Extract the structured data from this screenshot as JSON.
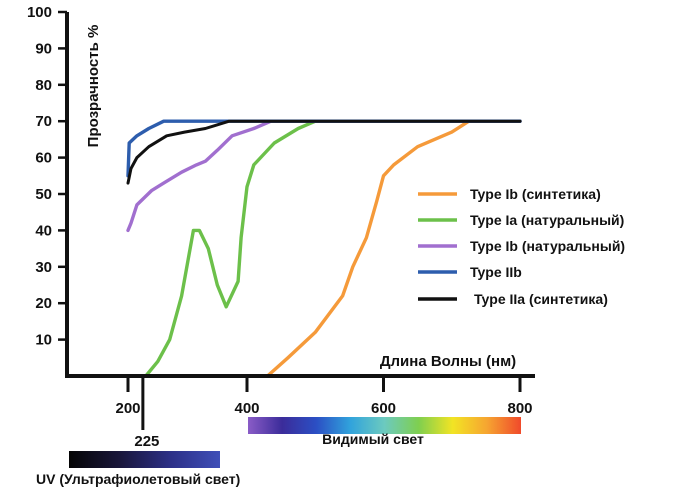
{
  "chart_data": {
    "type": "line",
    "ylabel": "Прозрачность %",
    "xlabel": "Длина Волны (нм)",
    "x_ticks": [
      200,
      400,
      600,
      800
    ],
    "extra_x_tick": 225,
    "y_ticks": [
      10,
      20,
      30,
      40,
      50,
      60,
      70,
      80,
      90,
      100
    ],
    "ylim": [
      0,
      100
    ],
    "xlim": [
      120,
      800
    ],
    "grid": false,
    "legend_position": "right",
    "series": [
      {
        "name": "Type Ib (синтетика)",
        "color": "#f59a3a",
        "points": [
          [
            430,
            0
          ],
          [
            460,
            5
          ],
          [
            500,
            12
          ],
          [
            540,
            22
          ],
          [
            555,
            30
          ],
          [
            575,
            38
          ],
          [
            590,
            48
          ],
          [
            600,
            55
          ],
          [
            615,
            58
          ],
          [
            650,
            63
          ],
          [
            700,
            67
          ],
          [
            725,
            70
          ],
          [
            800,
            70
          ]
        ]
      },
      {
        "name": "Type Ia (натуральный)",
        "color": "#6cc04a",
        "points": [
          [
            230,
            0
          ],
          [
            250,
            4
          ],
          [
            270,
            10
          ],
          [
            290,
            22
          ],
          [
            310,
            40
          ],
          [
            320,
            40
          ],
          [
            335,
            35
          ],
          [
            350,
            25
          ],
          [
            365,
            19
          ],
          [
            385,
            26
          ],
          [
            390,
            38
          ],
          [
            400,
            52
          ],
          [
            410,
            58
          ],
          [
            440,
            64
          ],
          [
            475,
            68
          ],
          [
            500,
            70
          ],
          [
            800,
            70
          ]
        ]
      },
      {
        "name": "Type Ib (натуральный)",
        "color": "#a16fcf",
        "points": [
          [
            200,
            40
          ],
          [
            205,
            42
          ],
          [
            215,
            47
          ],
          [
            240,
            51
          ],
          [
            260,
            53
          ],
          [
            290,
            56
          ],
          [
            315,
            58
          ],
          [
            330,
            59
          ],
          [
            350,
            62
          ],
          [
            375,
            66
          ],
          [
            410,
            68
          ],
          [
            435,
            70
          ],
          [
            800,
            70
          ]
        ]
      },
      {
        "name": "Type IIb",
        "color": "#2d5dad",
        "points": [
          [
            200,
            55
          ],
          [
            202,
            64
          ],
          [
            215,
            66
          ],
          [
            235,
            68
          ],
          [
            260,
            70
          ],
          [
            800,
            70
          ]
        ]
      },
      {
        "name": "Type IIa (синтетика)",
        "color": "#111111",
        "points": [
          [
            200,
            53
          ],
          [
            205,
            57
          ],
          [
            215,
            60
          ],
          [
            235,
            63
          ],
          [
            265,
            66
          ],
          [
            295,
            67
          ],
          [
            330,
            68
          ],
          [
            370,
            70
          ],
          [
            800,
            70
          ]
        ]
      }
    ],
    "bands": [
      {
        "label": "Видимый свет",
        "range": [
          400,
          800
        ],
        "colors": [
          "#8a5cc7",
          "#3b2c9a",
          "#2b4fc4",
          "#31a3dc",
          "#6ccabf",
          "#7fcf4f",
          "#f2e424",
          "#f6a531",
          "#f04a2b"
        ]
      },
      {
        "label": "UV (Ультрафиолетовый свет)",
        "range": [
          120,
          400
        ],
        "colors": [
          "#050505",
          "#19163a",
          "#2c2f86",
          "#3f4fb8"
        ]
      }
    ]
  }
}
